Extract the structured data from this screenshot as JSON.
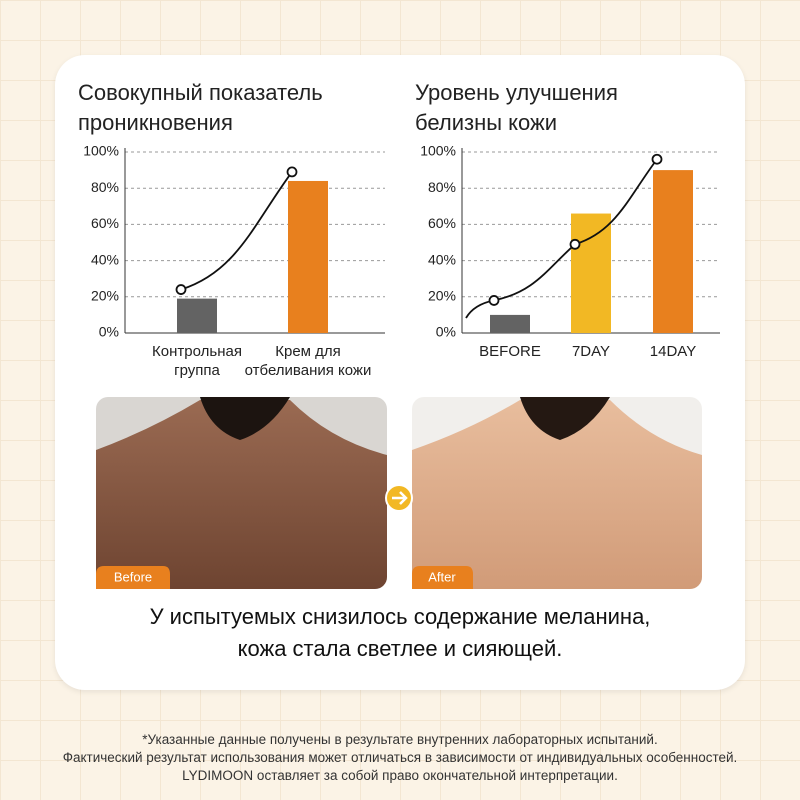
{
  "chart_data": [
    {
      "type": "bar",
      "title": [
        "Совокупный показатель",
        "проникновения"
      ],
      "categories": [
        "Контрольная группа",
        "Крем для отбеливания кожи"
      ],
      "values": [
        19,
        84
      ],
      "colors": [
        "#636363",
        "#e8801e"
      ],
      "line_values": [
        24,
        89
      ],
      "ylim": [
        0,
        100
      ],
      "yticks": [
        {
          "value": 0,
          "label": "0%"
        },
        {
          "value": 20,
          "label": "20%"
        },
        {
          "value": 40,
          "label": "40%"
        },
        {
          "value": 60,
          "label": "60%"
        },
        {
          "value": 80,
          "label": "80%"
        },
        {
          "value": 100,
          "label": "100%"
        }
      ],
      "grid": true
    },
    {
      "type": "bar",
      "title": [
        "Уровень улучшения",
        "белизны кожи"
      ],
      "categories": [
        "BEFORE",
        "7DAY",
        "14DAY"
      ],
      "values": [
        10,
        66,
        90
      ],
      "colors": [
        "#636363",
        "#f2b824",
        "#e8801e"
      ],
      "line_values": [
        18,
        49,
        96
      ],
      "ylim": [
        0,
        100
      ],
      "yticks": [
        {
          "value": 0,
          "label": "0%"
        },
        {
          "value": 20,
          "label": "20%"
        },
        {
          "value": 40,
          "label": "40%"
        },
        {
          "value": 60,
          "label": "60%"
        },
        {
          "value": 80,
          "label": "80%"
        },
        {
          "value": 100,
          "label": "100%"
        }
      ],
      "grid": true
    }
  ],
  "photos": {
    "before": "Before",
    "after": "After"
  },
  "caption": [
    "У испытуемых снизилось содержание меланина,",
    "кожа стала светлее и сияющей."
  ],
  "footnote": [
    "*Указанные данные получены в результате внутренних лабораторных испытаний.",
    "Фактический результат использования может отличаться в зависимости от индивидуальных особенностей.",
    "LYDIMOON оставляет за собой право окончательной интерпретации."
  ]
}
